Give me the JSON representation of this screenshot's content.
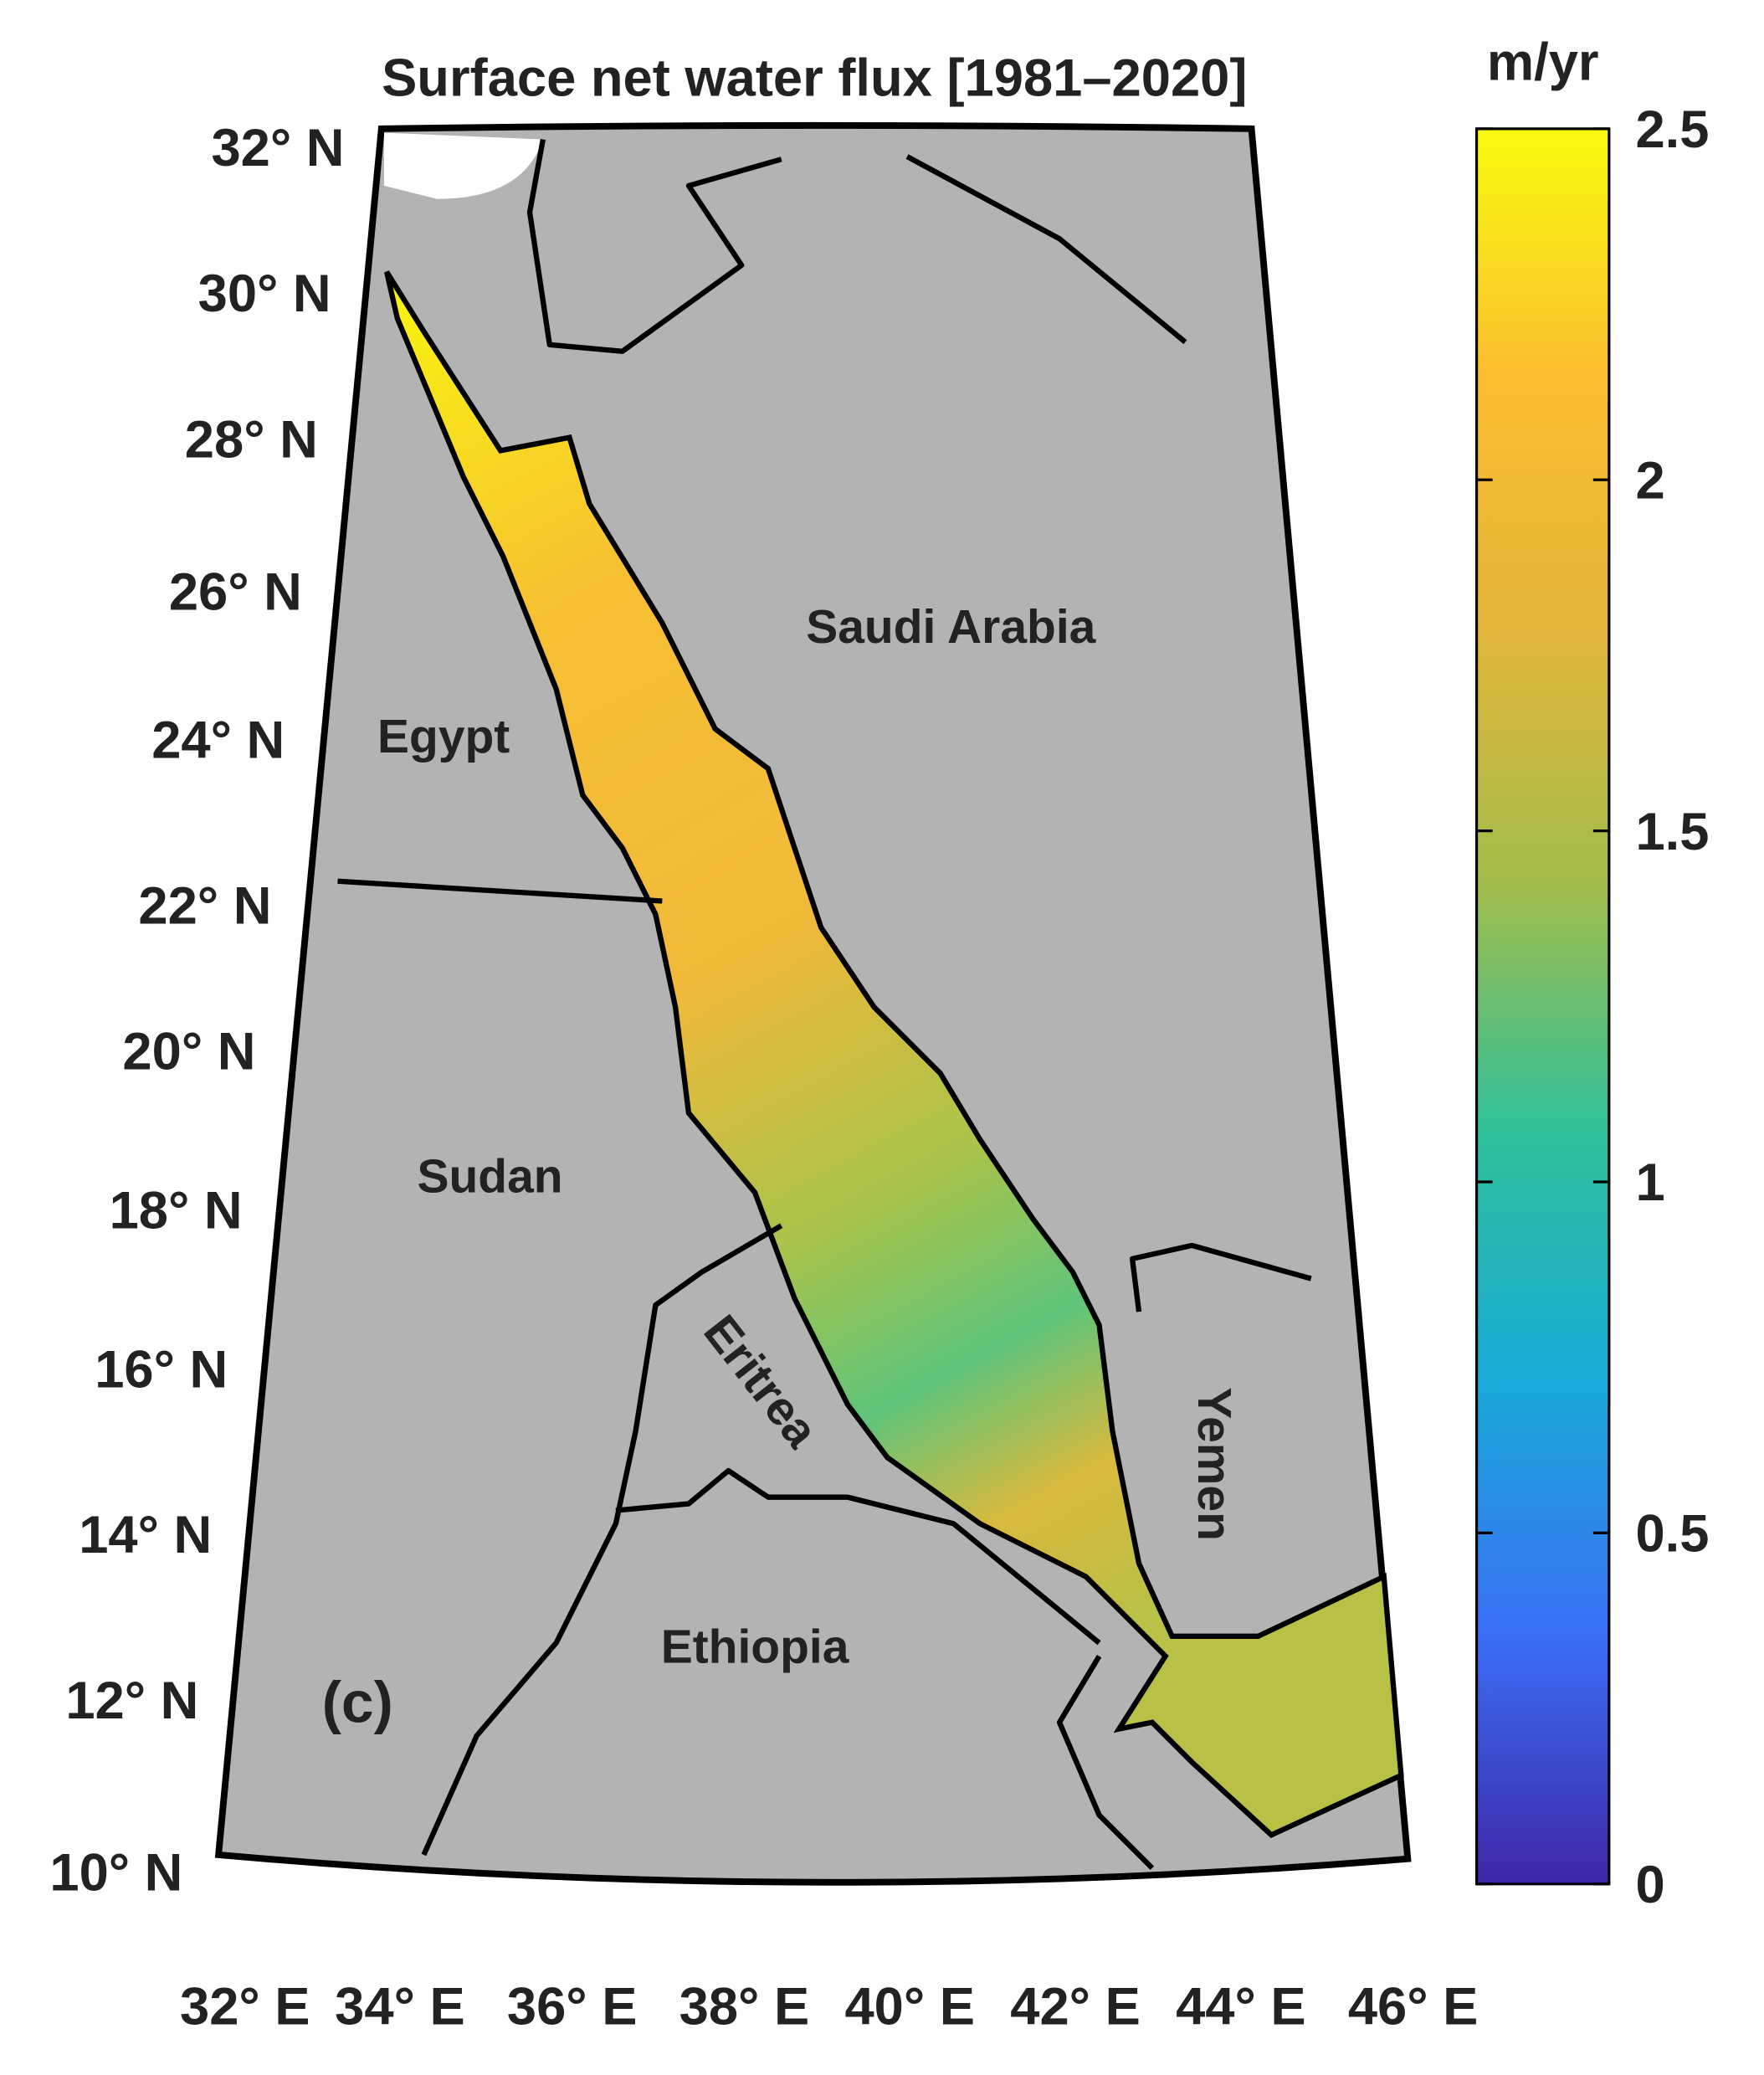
{
  "title": "Surface net water flux [1981–2020]",
  "panel_label": "(c)",
  "lat_labels": [
    "32° N",
    "30° N",
    "28° N",
    "26° N",
    "24° N",
    "22° N",
    "20° N",
    "18° N",
    "16° N",
    "14° N",
    "12° N",
    "10° N"
  ],
  "lon_labels": [
    "32° E",
    "34° E",
    "36° E",
    "38° E",
    "40° E",
    "42° E",
    "44° E",
    "46° E"
  ],
  "countries": [
    "Saudi Arabia",
    "Egypt",
    "Sudan",
    "Eritrea",
    "Yemen",
    "Ethiopia"
  ],
  "colorbar": {
    "label": "m/yr",
    "lim": [
      0,
      2.5
    ],
    "ticks": [
      0,
      0.5,
      1,
      1.5,
      2,
      2.5
    ],
    "colors": [
      "#3e26a8",
      "#3a6ff5",
      "#1aa9d8",
      "#2fc09a",
      "#a3bd4a",
      "#e3b53b",
      "#fbbd30",
      "#f9fb0e"
    ]
  }
}
